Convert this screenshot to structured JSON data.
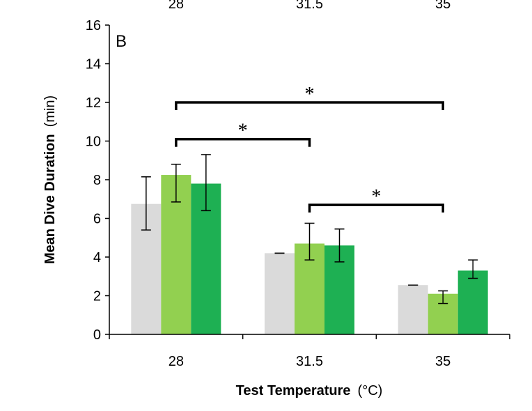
{
  "chart_data": {
    "type": "bar",
    "panel_label": "B",
    "top_cut_labels": [
      "28",
      "31.5",
      "35"
    ],
    "categories": [
      "28",
      "31.5",
      "35"
    ],
    "xlabel": "Test Temperature",
    "xlabel_unit": "(°C)",
    "ylabel": "Mean  Dive Duration",
    "ylabel_unit": "(min)",
    "ylim": [
      0,
      16
    ],
    "yticks": [
      0,
      2,
      4,
      6,
      8,
      10,
      12,
      14,
      16
    ],
    "grid": false,
    "legend": "none",
    "series": [
      {
        "color": "#dadada",
        "values": [
          6.75,
          4.2,
          2.55
        ],
        "err_low": [
          5.4,
          4.2,
          2.55
        ],
        "err_high": [
          8.15,
          4.2,
          2.55
        ]
      },
      {
        "color": "#92d050",
        "values": [
          8.25,
          4.7,
          2.1
        ],
        "err_low": [
          6.85,
          3.85,
          1.6
        ],
        "err_high": [
          8.8,
          5.75,
          2.25
        ]
      },
      {
        "color": "#1eb053",
        "values": [
          7.8,
          4.6,
          3.3
        ],
        "err_low": [
          6.4,
          3.75,
          2.9
        ],
        "err_high": [
          9.3,
          5.45,
          3.85
        ]
      }
    ],
    "significance": [
      {
        "from": "28",
        "to": "35",
        "level": 12.0,
        "label": "*"
      },
      {
        "from": "28",
        "to": "31.5",
        "level": 10.1,
        "label": "*"
      },
      {
        "from": "31.5",
        "to": "35",
        "level": 6.7,
        "label": "*"
      }
    ]
  }
}
